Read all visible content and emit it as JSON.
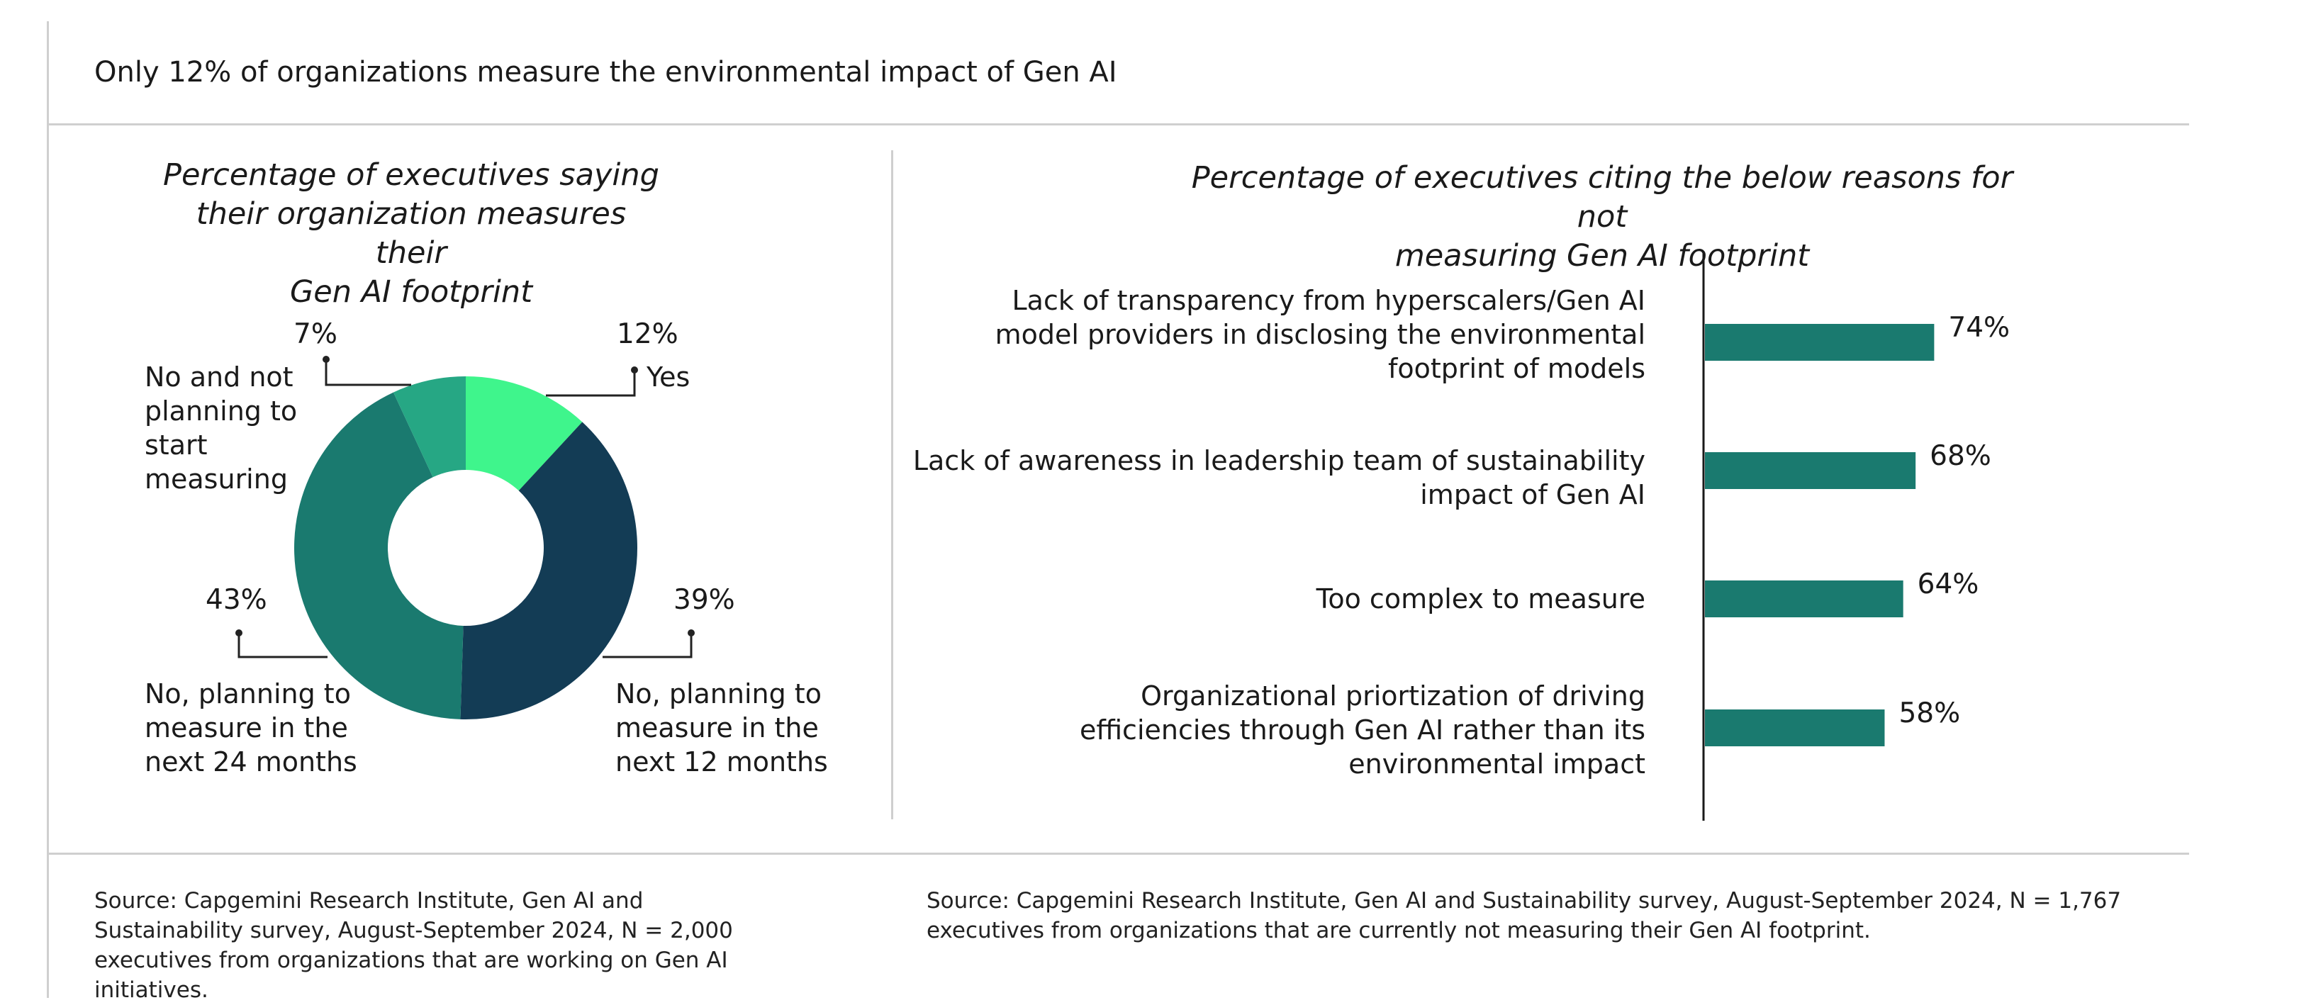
{
  "header": {
    "title": "Only 12% of organizations measure the environmental impact of Gen AI"
  },
  "colors": {
    "yes": "#3FF58C",
    "next12": "#133C55",
    "next24": "#1A7A6F",
    "not_planning": "#26A784",
    "bar": "#1A7A6F",
    "divider": "#cfcfcf"
  },
  "chart_data": [
    {
      "type": "pie",
      "variant": "donut",
      "title": "Percentage of executives saying their organization measures their Gen AI footprint",
      "slices": [
        {
          "label": "Yes",
          "value": 12,
          "value_label": "12%"
        },
        {
          "label": "No, planning to measure in the next 12 months",
          "value": 39,
          "value_label": "39%"
        },
        {
          "label": "No, planning to measure in the next 24 months",
          "value": 43,
          "value_label": "43%"
        },
        {
          "label": "No and not planning to start measuring",
          "value": 7,
          "value_label": "7%"
        }
      ]
    },
    {
      "type": "bar",
      "orientation": "horizontal",
      "title": "Percentage of executives citing the below reasons for not measuring Gen AI footprint",
      "categories": [
        "Lack of transparency from hyperscalers/Gen AI model providers in disclosing the environmental footprint of models",
        "Lack of awareness in leadership team of sustainability impact of Gen AI",
        "Too complex to measure",
        "Organizational priortization of driving efficiencies through Gen AI rather than its environmental impact"
      ],
      "values": [
        74,
        68,
        64,
        58
      ],
      "value_labels": [
        "74%",
        "68%",
        "64%",
        "58%"
      ],
      "xlim": [
        0,
        100
      ]
    }
  ],
  "labels": {
    "donut_title": "Percentage of executives saying\ntheir organization measures their\nGen AI footprint",
    "bar_title": "Percentage of executives citing the below reasons for not\nmeasuring Gen AI footprint",
    "yes": "Yes",
    "next12": "No, planning to\nmeasure in the\nnext 12 months",
    "next24": "No, planning to\nmeasure in the\nnext 24 months",
    "not_planning": "No and not\nplanning to\nstart\nmeasuring",
    "reason1": "Lack of transparency from hyperscalers/Gen AI\nmodel providers in disclosing the environmental\nfootprint of models",
    "reason2": "Lack of awareness in leadership team of sustainability\nimpact of Gen AI",
    "reason3": "Too complex to measure",
    "reason4": "Organizational priortization of driving\nefficiencies through Gen AI rather than its\nenvironmental impact"
  },
  "sources": {
    "left": "Source: Capgemini Research Institute, Gen AI and Sustainability survey, August-September 2024, N = 2,000 executives from organizations that are working on Gen AI initiatives.",
    "right": "Source: Capgemini Research Institute, Gen AI and Sustainability survey, August-September 2024, N = 1,767 executives from organizations that are currently not measuring their Gen AI footprint."
  }
}
